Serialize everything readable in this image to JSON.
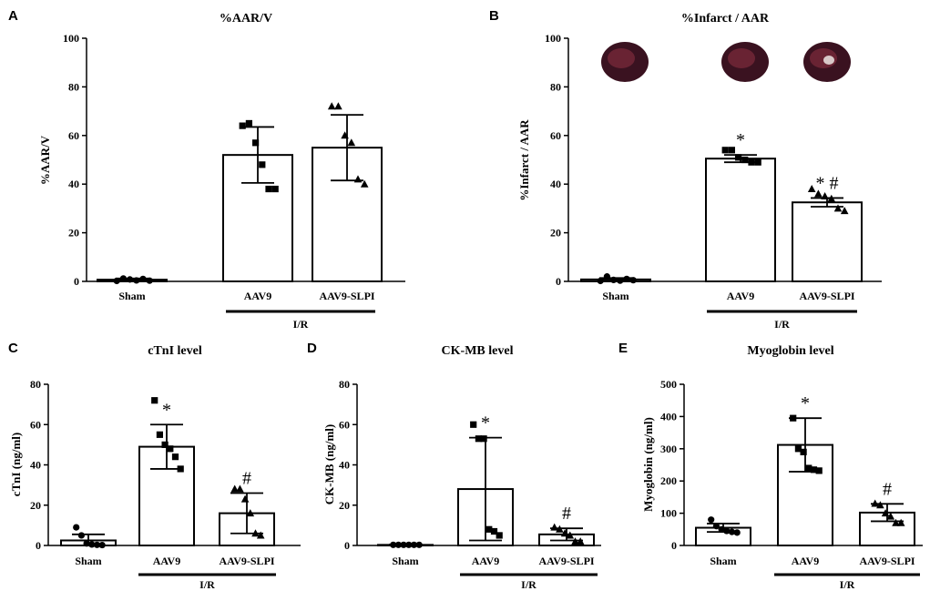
{
  "figure": {
    "panels": [
      "A",
      "B",
      "C",
      "D",
      "E"
    ],
    "colors": {
      "ink": "#000000",
      "bar_fill": "#ffffff",
      "heart_dark": "#3a1220",
      "heart_mid": "#7a2a3a"
    }
  },
  "chart_data": [
    {
      "id": "A",
      "type": "bar",
      "title": "%AAR/V",
      "ylabel": "%AAR/V",
      "ylim": [
        0,
        100
      ],
      "yticks": [
        0,
        20,
        40,
        60,
        80,
        100
      ],
      "categories": [
        "Sham",
        "AAV9",
        "AAV9-SLPI"
      ],
      "group_label": "I/R",
      "group_covers": [
        "AAV9",
        "AAV9-SLPI"
      ],
      "means": [
        0.7,
        52,
        55
      ],
      "errors": [
        0.5,
        11.5,
        13.5
      ],
      "markers": [
        "circle",
        "square",
        "triangle"
      ],
      "points": [
        [
          0.2,
          1.2,
          0.8,
          0.4,
          1.0,
          0.3
        ],
        [
          64,
          65,
          57,
          48,
          38,
          38
        ],
        [
          72,
          72,
          60,
          57,
          42,
          40
        ]
      ],
      "annotations": [
        "",
        "",
        ""
      ]
    },
    {
      "id": "B",
      "type": "bar",
      "title": "%Infarct / AAR",
      "ylabel": "%Infarct / AAR",
      "ylim": [
        0,
        100
      ],
      "yticks": [
        0,
        20,
        40,
        60,
        80,
        100
      ],
      "categories": [
        "Sham",
        "AAV9",
        "AAV9-SLPI"
      ],
      "group_label": "I/R",
      "group_covers": [
        "AAV9",
        "AAV9-SLPI"
      ],
      "means": [
        0.8,
        50.5,
        32.5
      ],
      "errors": [
        0.6,
        1.5,
        1.8
      ],
      "markers": [
        "circle",
        "square",
        "triangle"
      ],
      "points": [
        [
          0.2,
          2.0,
          0.6,
          0.3,
          1.0,
          0.5
        ],
        [
          54,
          54,
          51,
          50,
          49,
          49
        ],
        [
          38,
          36,
          35,
          34,
          30,
          29
        ]
      ],
      "annotations": [
        "",
        "*",
        "* #"
      ],
      "images": [
        "sham-heart-image",
        "aav9-heart-image",
        "aav9-slpi-heart-image"
      ]
    },
    {
      "id": "C",
      "type": "bar",
      "title": "cTnI level",
      "ylabel": "cTnI (ng/ml)",
      "ylim": [
        0,
        80
      ],
      "yticks": [
        0,
        20,
        40,
        60,
        80
      ],
      "categories": [
        "Sham",
        "AAV9",
        "AAV9-SLPI"
      ],
      "group_label": "I/R",
      "group_covers": [
        "AAV9",
        "AAV9-SLPI"
      ],
      "means": [
        2.5,
        49,
        16
      ],
      "errors": [
        3,
        11,
        10
      ],
      "markers": [
        "circle",
        "square",
        "triangle"
      ],
      "points": [
        [
          9,
          5,
          1,
          0.5,
          0.3,
          0.2
        ],
        [
          72,
          55,
          50,
          48,
          44,
          38
        ],
        [
          28,
          28,
          23,
          16,
          6,
          5
        ]
      ],
      "annotations": [
        "",
        "*",
        "#"
      ]
    },
    {
      "id": "D",
      "type": "bar",
      "title": "CK-MB level",
      "ylabel": "CK-MB (ng/ml)",
      "ylim": [
        0,
        80
      ],
      "yticks": [
        0,
        20,
        40,
        60,
        80
      ],
      "categories": [
        "Sham",
        "AAV9",
        "AAV9-SLPI"
      ],
      "group_label": "I/R",
      "group_covers": [
        "AAV9",
        "AAV9-SLPI"
      ],
      "means": [
        0.3,
        28,
        5.5
      ],
      "errors": [
        0.2,
        25.5,
        3
      ],
      "markers": [
        "circle",
        "square",
        "triangle"
      ],
      "points": [
        [
          0.3,
          0.3,
          0.3,
          0.3,
          0.3,
          0.3
        ],
        [
          60,
          53,
          53,
          8,
          7,
          5
        ],
        [
          9,
          8,
          6,
          5,
          2,
          2
        ]
      ],
      "annotations": [
        "",
        "*",
        "#"
      ]
    },
    {
      "id": "E",
      "type": "bar",
      "title": "Myoglobin level",
      "ylabel": "Myoglobin (ng/ml)",
      "ylim": [
        0,
        500
      ],
      "yticks": [
        0,
        100,
        200,
        300,
        400,
        500
      ],
      "categories": [
        "Sham",
        "AAV9",
        "AAV9-SLPI"
      ],
      "group_label": "I/R",
      "group_covers": [
        "AAV9",
        "AAV9-SLPI"
      ],
      "means": [
        55,
        312,
        102
      ],
      "errors": [
        13,
        83,
        27
      ],
      "markers": [
        "circle",
        "square",
        "triangle"
      ],
      "points": [
        [
          80,
          60,
          50,
          45,
          42,
          40
        ],
        [
          395,
          300,
          290,
          240,
          235,
          232
        ],
        [
          130,
          125,
          100,
          90,
          70,
          70
        ]
      ],
      "annotations": [
        "",
        "*",
        "#"
      ]
    }
  ]
}
